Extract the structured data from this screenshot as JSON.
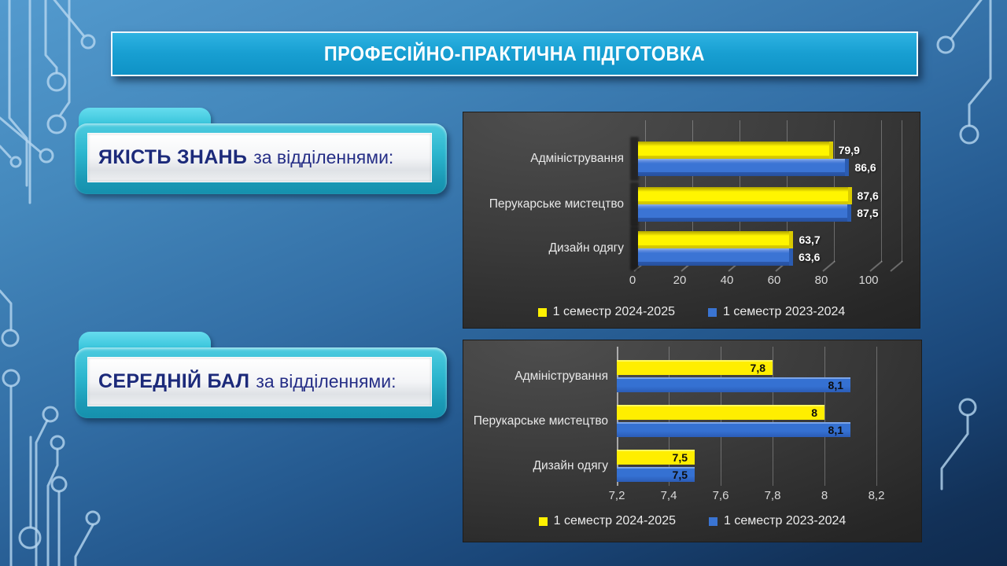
{
  "slide": {
    "title": "ПРОФЕСІЙНО-ПРАКТИЧНА ПІДГОТОВКА"
  },
  "sections": [
    {
      "strong": "ЯКІСТЬ ЗНАНЬ",
      "rest": "за відділеннями:"
    },
    {
      "strong": "СЕРЕДНІЙ БАЛ",
      "rest": "за відділеннями:"
    }
  ],
  "colors": {
    "series_2024": "#fff100",
    "series_2023": "#3a74d2",
    "banner": "#189fd2",
    "ribbon": "#2cb6ce",
    "chart_bg": "#3b3b3b"
  },
  "chart_data": [
    {
      "type": "bar",
      "orientation": "horizontal",
      "style": "3d",
      "categories": [
        "Адміністрування",
        "Перукарське мистецтво",
        "Дизайн одягу"
      ],
      "series": [
        {
          "name": "1 семестр 2024-2025",
          "color": "#fff100",
          "values": [
            79.9,
            87.6,
            63.7
          ],
          "value_labels": [
            "79,9",
            "87,6",
            "63,7"
          ]
        },
        {
          "name": "1 семестр 2023-2024",
          "color": "#3a74d2",
          "values": [
            86.6,
            87.5,
            63.6
          ],
          "value_labels": [
            "86,6",
            "87,5",
            "63,6"
          ]
        }
      ],
      "xlim": [
        0,
        100
      ],
      "xticks": [
        0,
        20,
        40,
        60,
        80,
        100
      ],
      "xtick_labels": [
        "0",
        "20",
        "40",
        "60",
        "80",
        "100"
      ],
      "grid": true,
      "legend_position": "bottom",
      "value_label_position": "outside-end"
    },
    {
      "type": "bar",
      "orientation": "horizontal",
      "style": "flat",
      "categories": [
        "Адміністрування",
        "Перукарське мистецтво",
        "Дизайн одягу"
      ],
      "series": [
        {
          "name": "1 семестр 2024-2025",
          "color": "#fff100",
          "values": [
            7.8,
            8,
            7.5
          ],
          "value_labels": [
            "7,8",
            "8",
            "7,5"
          ]
        },
        {
          "name": "1 семестр 2023-2024",
          "color": "#3a74d2",
          "values": [
            8.1,
            8.1,
            7.5
          ],
          "value_labels": [
            "8,1",
            "8,1",
            "7,5"
          ]
        }
      ],
      "xlim": [
        7.2,
        8.2
      ],
      "xticks": [
        7.2,
        7.4,
        7.6,
        7.8,
        8,
        8.2
      ],
      "xtick_labels": [
        "7,2",
        "7,4",
        "7,6",
        "7,8",
        "8",
        "8,2"
      ],
      "grid": true,
      "legend_position": "bottom",
      "value_label_position": "inside-end"
    }
  ]
}
